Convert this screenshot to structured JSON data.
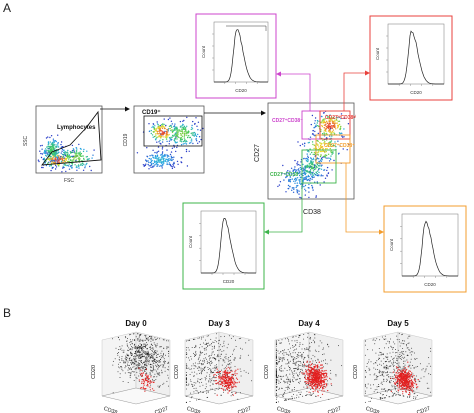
{
  "panels": {
    "a": "A",
    "b": "B"
  },
  "gating": {
    "lymph_plot": {
      "gate_label": "Lymphocytes",
      "xlabel": "FSC",
      "ylabel": "SSC"
    },
    "cd19_plot": {
      "gate_label": "CD19⁺",
      "ylabel": "CD19"
    },
    "cd27_plot": {
      "xlabel": "CD38",
      "ylabel": "CD27",
      "gates": {
        "cd27hi_cd38lo": "CD27⁺CD38⁻",
        "cd27hi_cd38hi": "CD27ʰⁱCD38ʰⁱ",
        "cd27int_cd38int": "CD27⁺CD38⁺",
        "cd27lo_cd38lo": "CD27⁻CD38⁻"
      }
    }
  },
  "histograms": {
    "xlabel": "CD20",
    "ylabel": "Count"
  },
  "colors": {
    "magenta": "#cc44cc",
    "red": "#e8413c",
    "orange": "#f39c2c",
    "green": "#3cb44a",
    "arrow": "#111111"
  },
  "panel_b": {
    "days": [
      "Day 0",
      "Day 3",
      "Day 4",
      "Day 5"
    ],
    "axes": {
      "vertical": "CD20",
      "left": "CD38",
      "right": "CD27"
    }
  }
}
